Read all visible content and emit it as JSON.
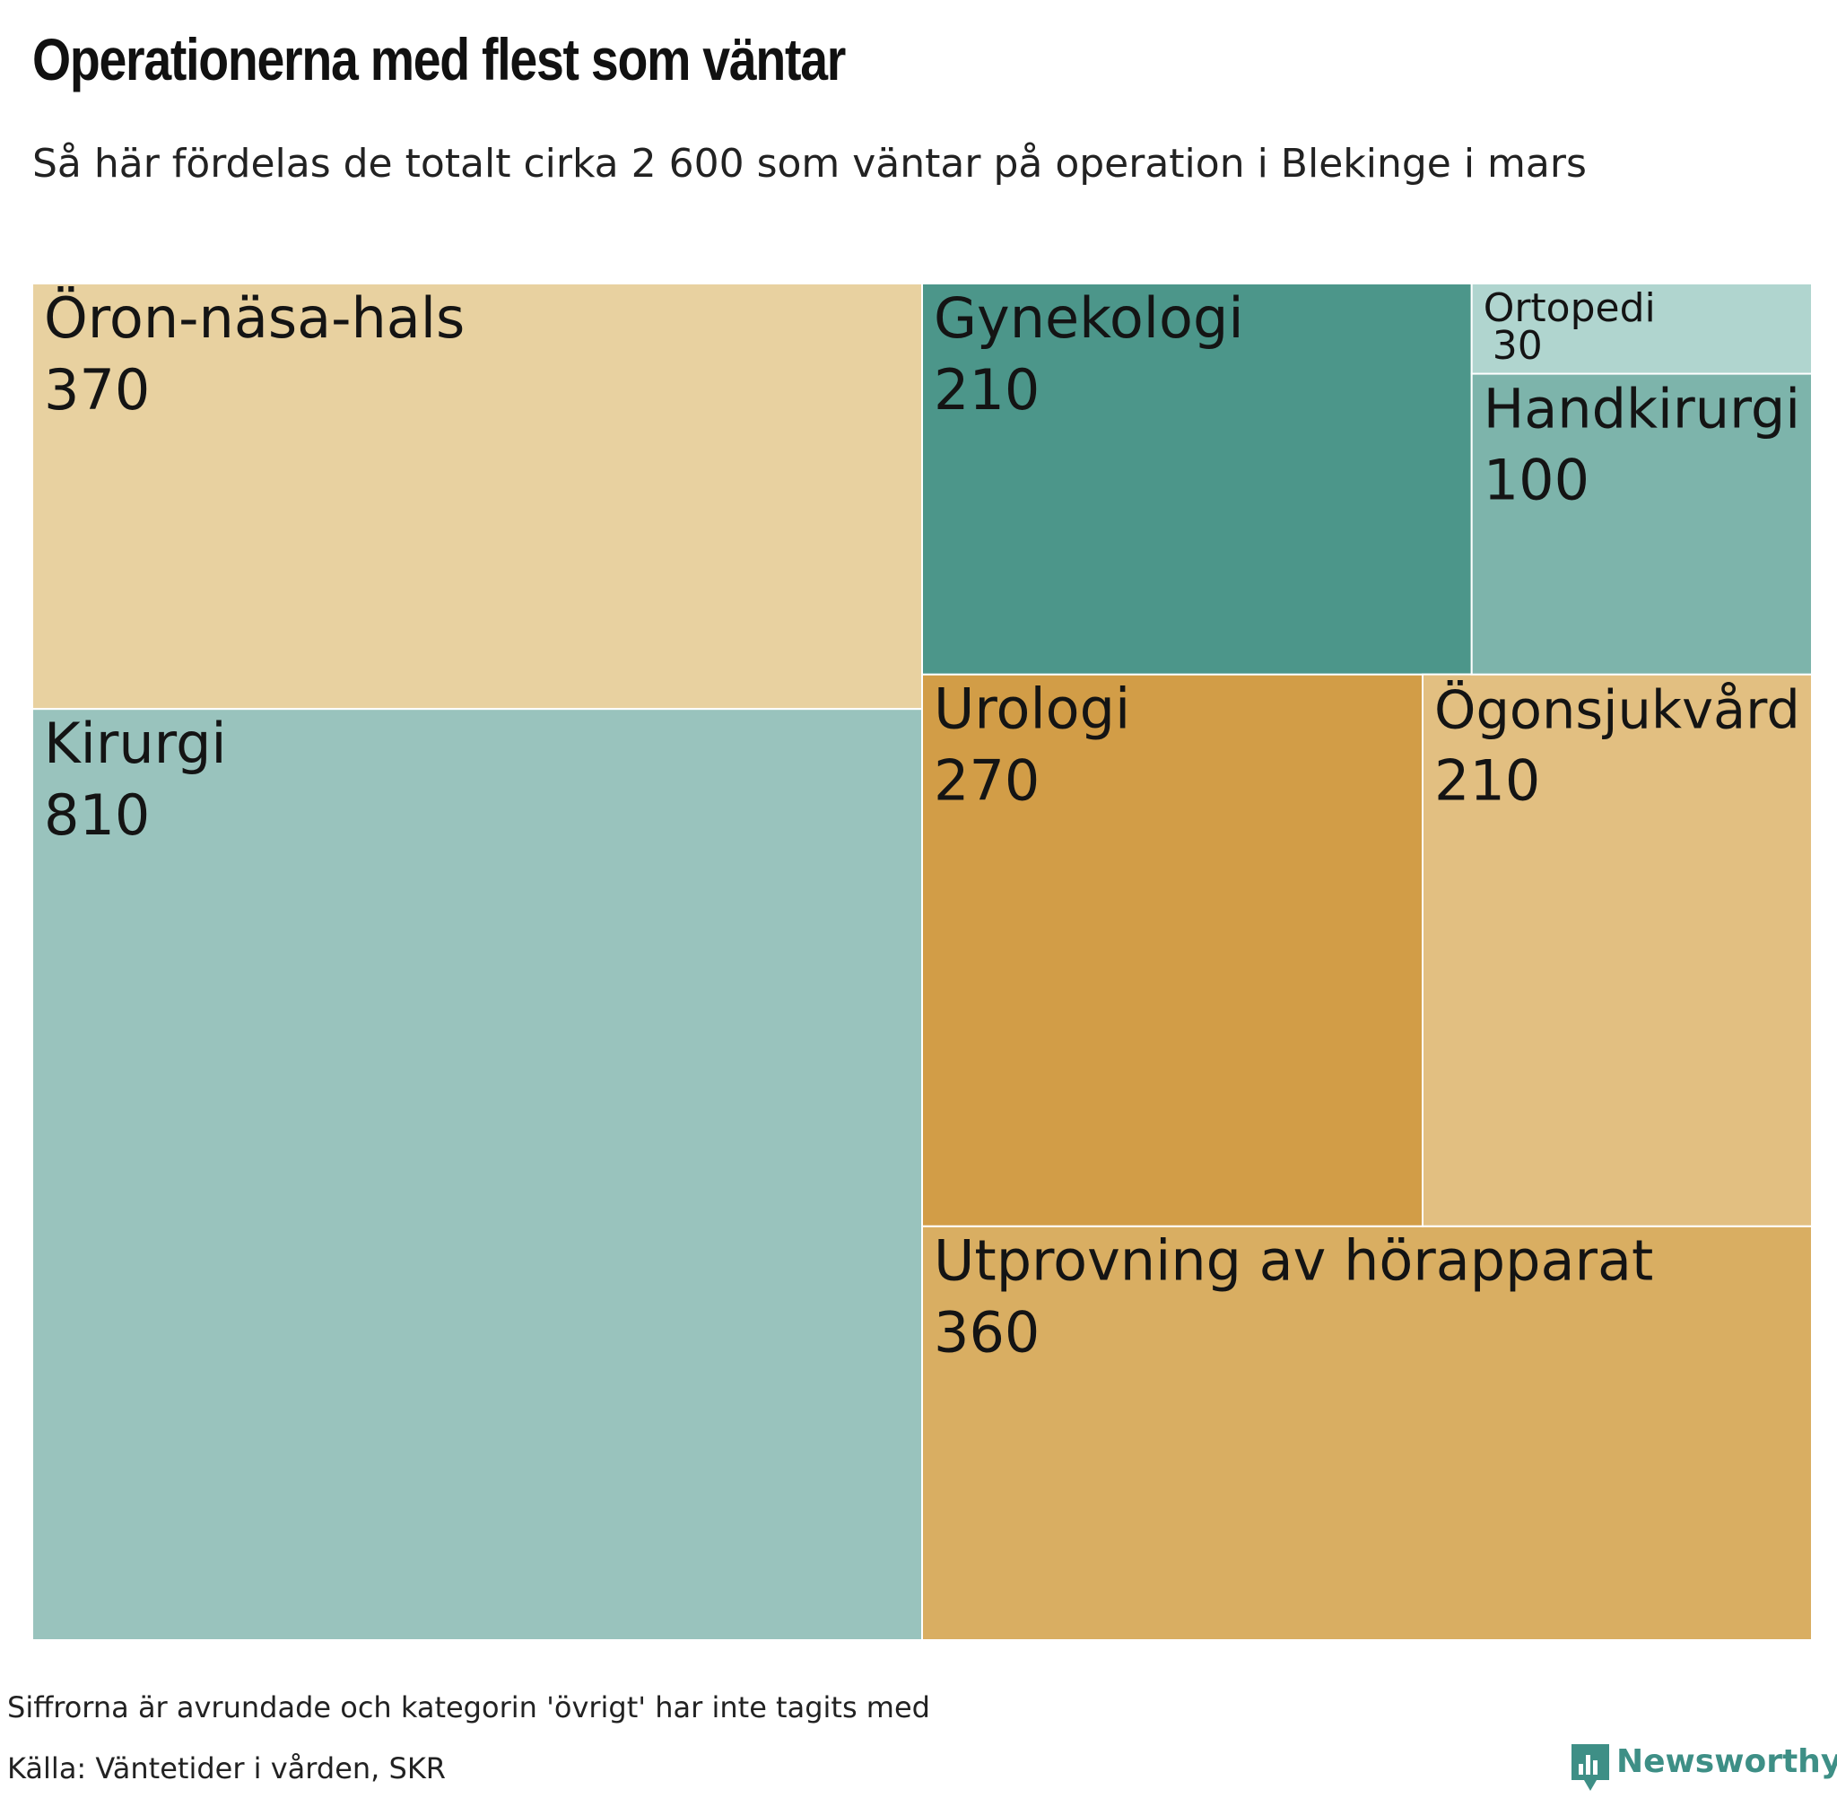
{
  "header": {
    "title": "Operationerna med flest som väntar",
    "subtitle": "Så här fördelas de totalt cirka 2 600 som väntar på operation i Blekinge i mars"
  },
  "chart_data": {
    "type": "treemap",
    "title": "Operationerna med flest som väntar",
    "subtitle": "Så här fördelas de totalt cirka 2 600 som väntar på operation i Blekinge i mars",
    "items": [
      {
        "name": "Kirurgi",
        "value": 810,
        "color": "#99c3bd"
      },
      {
        "name": "Öron-näsa-hals",
        "value": 370,
        "color": "#e8d1a0"
      },
      {
        "name": "Utprovning av hörapparat",
        "value": 360,
        "color": "#d9ae62"
      },
      {
        "name": "Urologi",
        "value": 270,
        "color": "#d29d47"
      },
      {
        "name": "Gynekologi",
        "value": 210,
        "color": "#4c968a"
      },
      {
        "name": "Ögonsjukvård",
        "value": 210,
        "color": "#e2bf81"
      },
      {
        "name": "Handkirurgi",
        "value": 100,
        "color": "#7db4ab"
      },
      {
        "name": "Ortopedi",
        "value": 30,
        "color": "#b0d5cf"
      }
    ]
  },
  "footer": {
    "note": "Siffrorna är avrundade och kategorin 'övrigt' har inte tagits med",
    "source": "Källa: Väntetider i vården, SKR",
    "brand": "Newsworthy",
    "brand_icon": "newsworthy-logo-icon",
    "brand_color": "#3e8f86"
  }
}
